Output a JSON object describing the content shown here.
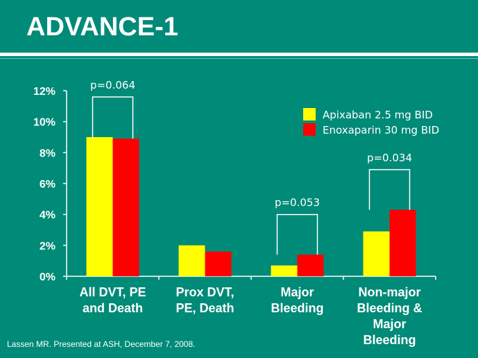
{
  "slide": {
    "title": "ADVANCE-1",
    "footnote": "Lassen MR. Presented at ASH, December 7, 2008."
  },
  "colors": {
    "background": "#008a78",
    "apixaban": "#ffff00",
    "enoxaparin": "#ff0000",
    "text": "#ffffff"
  },
  "chart_data": {
    "type": "bar",
    "categories": [
      [
        "All DVT, PE",
        "and Death"
      ],
      [
        "Prox DVT,",
        "PE, Death"
      ],
      [
        "Major",
        "Bleeding"
      ],
      [
        "Non-major",
        "Bleeding &",
        "Major",
        "Bleeding"
      ]
    ],
    "series": [
      {
        "name": "Apixaban 2.5 mg BID",
        "color": "#ffff00",
        "values": [
          9.0,
          2.0,
          0.7,
          2.9
        ]
      },
      {
        "name": "Enoxaparin 30 mg BID",
        "color": "#ff0000",
        "values": [
          8.9,
          1.6,
          1.4,
          4.3
        ]
      }
    ],
    "ylim": [
      0,
      12
    ],
    "yticks": [
      0,
      2,
      4,
      6,
      8,
      10,
      12
    ],
    "ytick_labels": [
      "0%",
      "2%",
      "4%",
      "6%",
      "8%",
      "10%",
      "12%"
    ],
    "legend_position": "top-right",
    "annotations": [
      {
        "category_index": 0,
        "text": "p=0.064"
      },
      {
        "category_index": 2,
        "text": "p=0.053"
      },
      {
        "category_index": 3,
        "text": "p=0.034"
      }
    ]
  }
}
